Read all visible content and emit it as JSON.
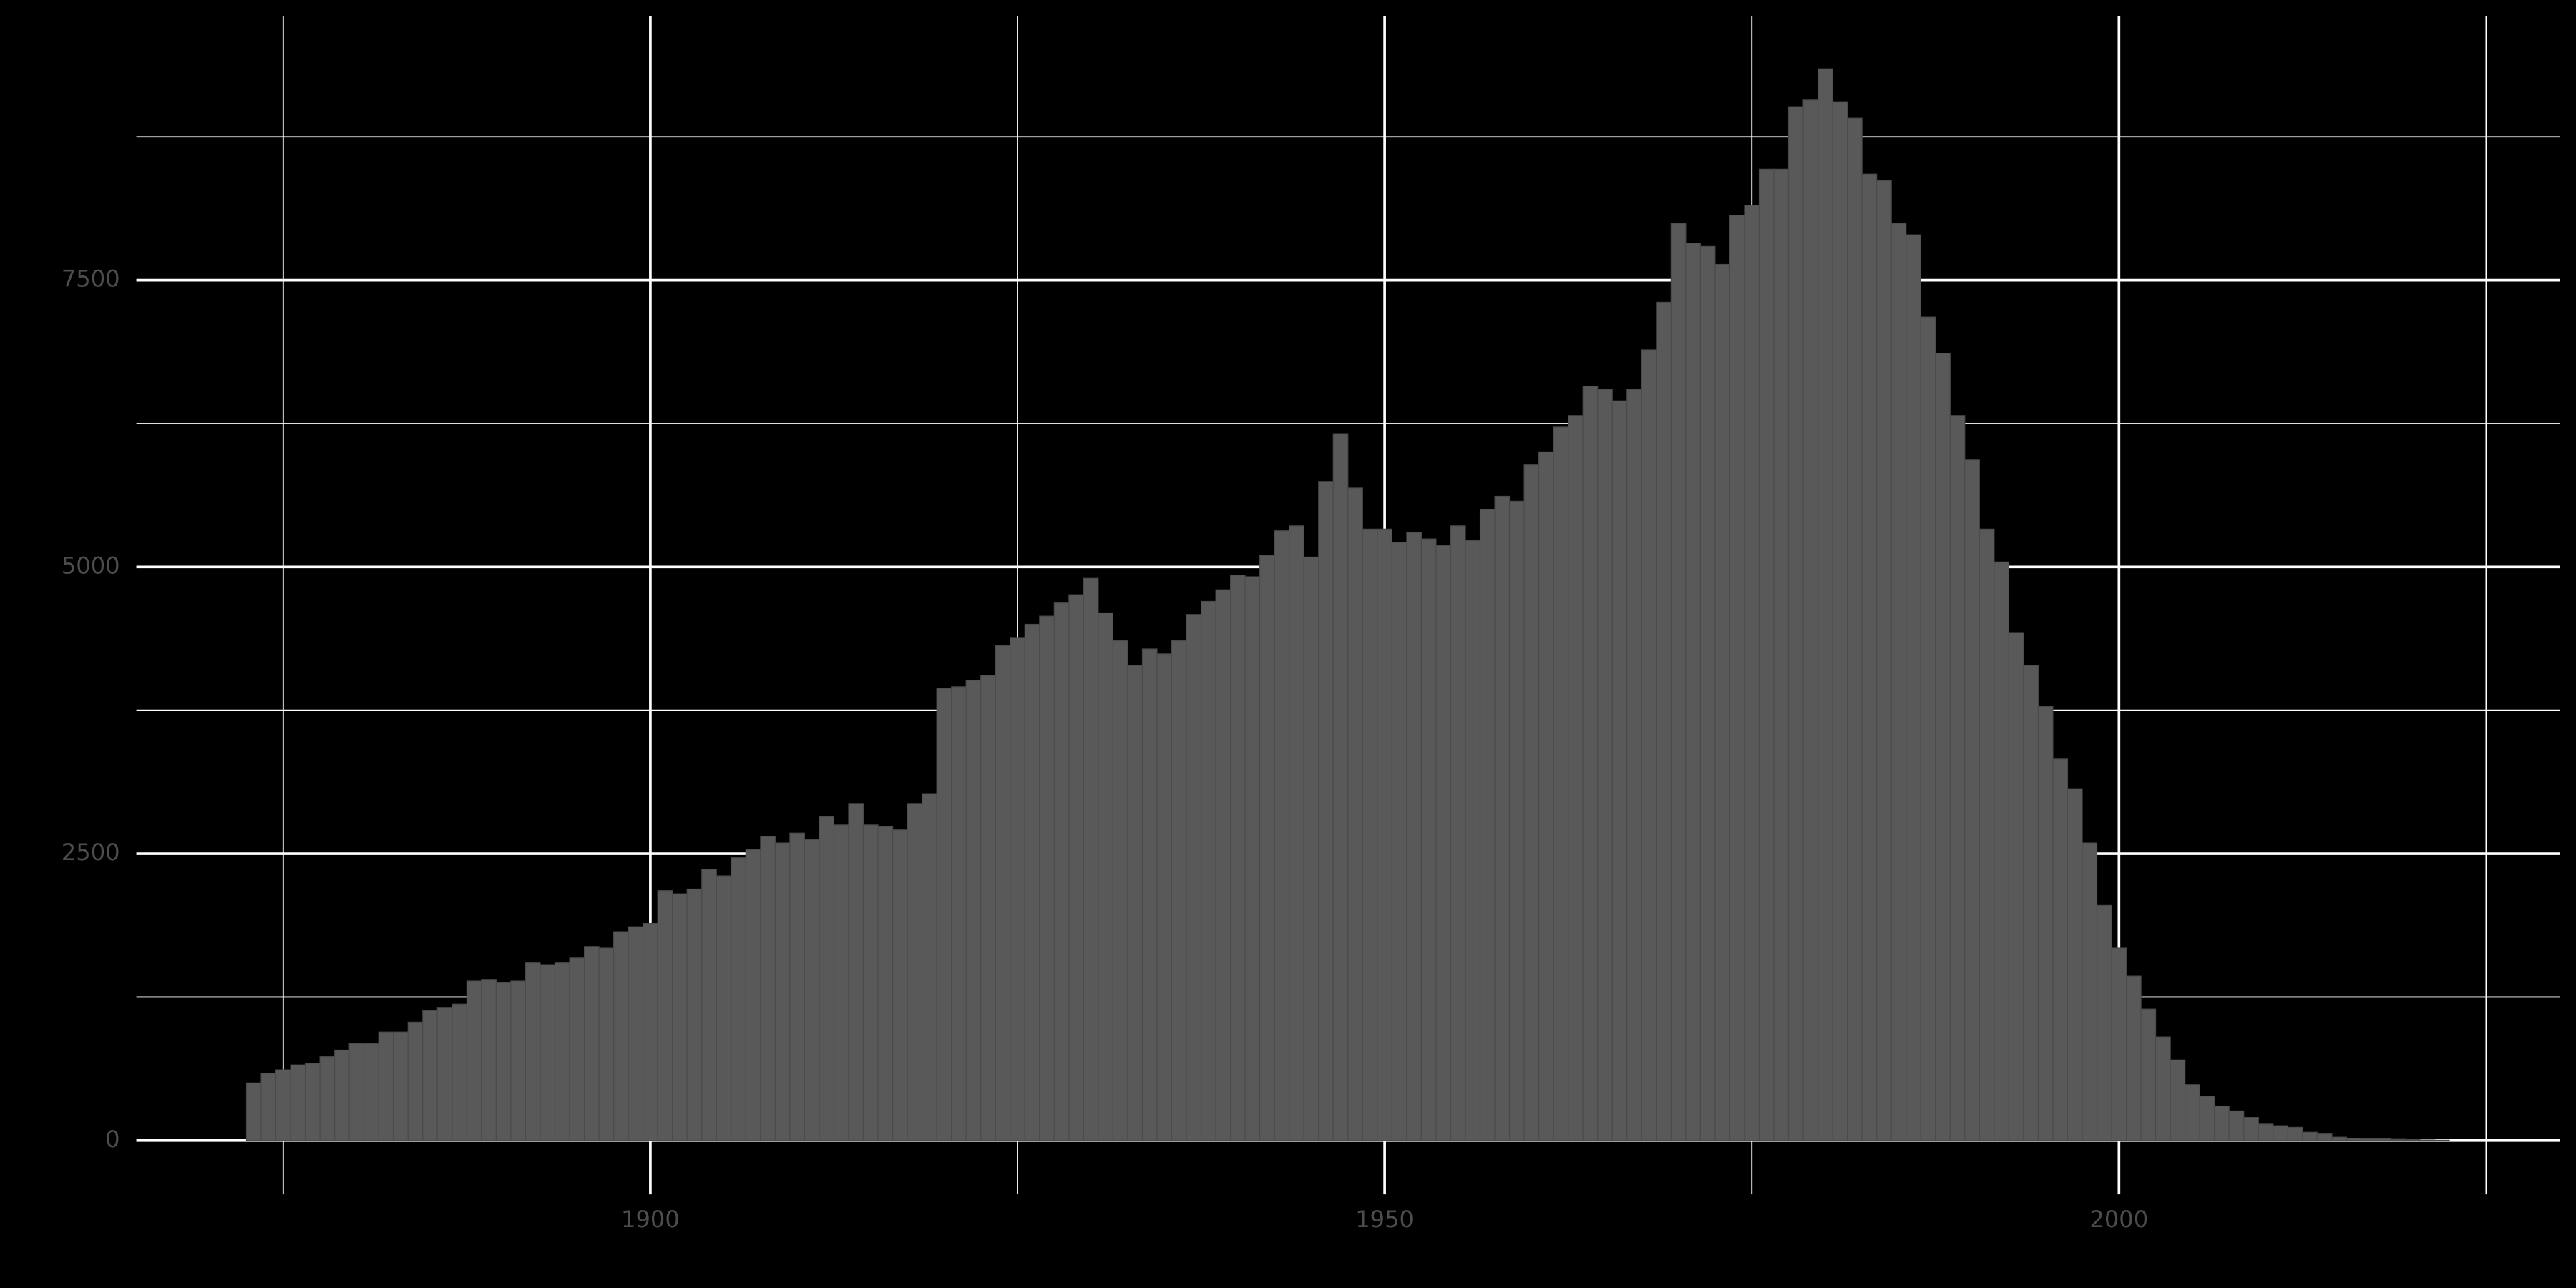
{
  "chart_data": {
    "type": "histogram",
    "bins": [
      1872.5,
      1873.5,
      1874.5,
      1875.5,
      1876.5,
      1877.5,
      1878.5,
      1879.5,
      1880.5,
      1881.5,
      1882.5,
      1883.5,
      1884.5,
      1885.5,
      1886.5,
      1887.5,
      1888.5,
      1889.5,
      1890.5,
      1891.5,
      1892.5,
      1893.5,
      1894.5,
      1895.5,
      1896.5,
      1897.5,
      1898.5,
      1899.5,
      1900.5,
      1901.5,
      1902.5,
      1903.5,
      1904.5,
      1905.5,
      1906.5,
      1907.5,
      1908.5,
      1909.5,
      1910.5,
      1911.5,
      1912.5,
      1913.5,
      1914.5,
      1915.5,
      1916.5,
      1917.5,
      1918.5,
      1919.5,
      1920.5,
      1921.5,
      1922.5,
      1923.5,
      1924.5,
      1925.5,
      1926.5,
      1927.5,
      1928.5,
      1929.5,
      1930.5,
      1931.5,
      1932.5,
      1933.5,
      1934.5,
      1935.5,
      1936.5,
      1937.5,
      1938.5,
      1939.5,
      1940.5,
      1941.5,
      1942.5,
      1943.5,
      1944.5,
      1945.5,
      1946.5,
      1947.5,
      1948.5,
      1949.5,
      1950.5,
      1951.5,
      1952.5,
      1953.5,
      1954.5,
      1955.5,
      1956.5,
      1957.5,
      1958.5,
      1959.5,
      1960.5,
      1961.5,
      1962.5,
      1963.5,
      1964.5,
      1965.5,
      1966.5,
      1967.5,
      1968.5,
      1969.5,
      1970.5,
      1971.5,
      1972.5,
      1973.5,
      1974.5,
      1975.5,
      1976.5,
      1977.5,
      1978.5,
      1979.5,
      1980.5,
      1981.5,
      1982.5,
      1983.5,
      1984.5,
      1985.5,
      1986.5,
      1987.5,
      1988.5,
      1989.5,
      1990.5,
      1991.5,
      1992.5,
      1993.5,
      1994.5,
      1995.5,
      1996.5,
      1997.5,
      1998.5,
      1999.5,
      2000.5,
      2001.5,
      2002.5,
      2003.5,
      2004.5,
      2005.5,
      2006.5,
      2007.5,
      2008.5,
      2009.5,
      2010.5,
      2011.5,
      2012.5,
      2013.5,
      2014.5,
      2015.5,
      2016.5,
      2017.5,
      2018.5,
      2019.5,
      2020.5,
      2021.5,
      2022.5
    ],
    "values": [
      502,
      588,
      616,
      659,
      673,
      731,
      788,
      845,
      845,
      946,
      946,
      1032,
      1132,
      1161,
      1189,
      1390,
      1404,
      1376,
      1390,
      1548,
      1533,
      1548,
      1591,
      1691,
      1677,
      1820,
      1863,
      1892,
      2178,
      2150,
      2192,
      2364,
      2307,
      2465,
      2536,
      2651,
      2594,
      2680,
      2622,
      2823,
      2751,
      2938,
      2751,
      2737,
      2708,
      2938,
      3024,
      3941,
      3955,
      4012,
      4055,
      4313,
      4385,
      4500,
      4571,
      4686,
      4758,
      4901,
      4600,
      4356,
      4141,
      4285,
      4242,
      4356,
      4586,
      4700,
      4801,
      4930,
      4915,
      5101,
      5316,
      5359,
      5087,
      5746,
      6162,
      5689,
      5331,
      5331,
      5216,
      5302,
      5245,
      5187,
      5359,
      5230,
      5503,
      5617,
      5574,
      5890,
      6004,
      6219,
      6320,
      6577,
      6549,
      6448,
      6549,
      6893,
      7308,
      7996,
      7824,
      7795,
      7638,
      8068,
      8154,
      8469,
      8469,
      9013,
      9071,
      9343,
      9056,
      8913,
      8426,
      8369,
      7996,
      7896,
      7179,
      6864,
      6320,
      5933,
      5331,
      5044,
      4428,
      4141,
      3783,
      3325,
      3067,
      2594,
      2049,
      1677,
      1433,
      1146,
      903,
      702,
      487,
      387,
      301,
      258,
      201,
      143,
      129,
      115,
      72,
      57,
      29,
      20,
      15,
      15,
      10,
      8,
      5,
      3
    ],
    "color": "#595959",
    "xlim": [
      1865,
      2030
    ],
    "xticks": [
      1900,
      1950,
      2000
    ],
    "xticks_minor": [
      1875,
      1925,
      1975,
      2025
    ],
    "ylim": [
      -470,
      9800
    ],
    "yticks": [
      0,
      2500,
      5000,
      7500
    ],
    "yticks_minor": [
      1250,
      3750,
      6250,
      8750
    ],
    "grid": true
  }
}
